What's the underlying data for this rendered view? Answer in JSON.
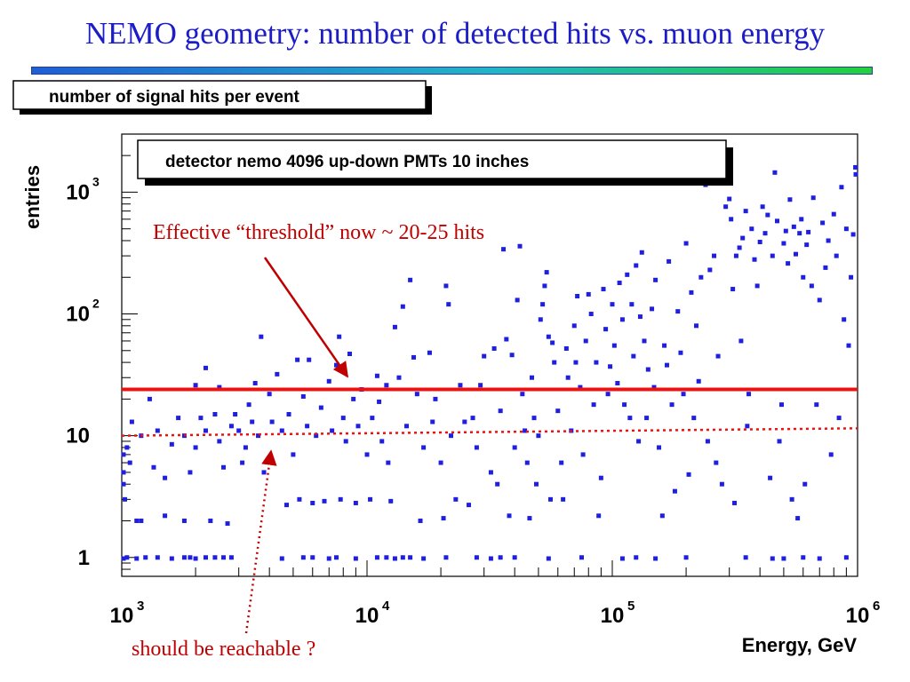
{
  "slide": {
    "title": "NEMO geometry: number of detected hits vs. muon energy"
  },
  "colors": {
    "title": "#1c1cc8",
    "points": "#1f1fe0",
    "threshold": "#ee1111",
    "annotation": "#c00000"
  },
  "chart_data": {
    "type": "scatter",
    "title": "number of signal hits per event",
    "subtitle": "detector nemo 4096 up-down PMTs 10 inches",
    "xlabel": "Energy, GeV",
    "ylabel": "entries",
    "x_scale": "log",
    "y_scale": "log",
    "xlim": [
      1000,
      1000000
    ],
    "ylim": [
      0.7,
      3000
    ],
    "x_ticks": [
      {
        "value": 1000,
        "base": "10",
        "exp": "3"
      },
      {
        "value": 10000,
        "base": "10",
        "exp": "4"
      },
      {
        "value": 100000,
        "base": "10",
        "exp": "5"
      },
      {
        "value": 1000000,
        "base": "10",
        "exp": "6"
      }
    ],
    "y_ticks": [
      {
        "value": 1,
        "base": "1",
        "exp": ""
      },
      {
        "value": 10,
        "base": "10",
        "exp": ""
      },
      {
        "value": 100,
        "base": "10",
        "exp": "2"
      },
      {
        "value": 1000,
        "base": "10",
        "exp": "3"
      }
    ],
    "lines": [
      {
        "name": "effective-threshold",
        "style": "solid",
        "y_start": 24,
        "y_end": 24
      },
      {
        "name": "reachable-threshold",
        "style": "dotted",
        "y_start": 10,
        "y_end": 11.5
      }
    ],
    "annotations": [
      {
        "text": "Effective “threshold” now ~ 20-25 hits",
        "arrow_to": [
          8000,
          30
        ]
      },
      {
        "text": "should be reachable ?",
        "arrow_to": [
          3700,
          9
        ]
      }
    ],
    "points": [
      [
        1000,
        0.98
      ],
      [
        1050,
        1.0
      ],
      [
        1150,
        0.98
      ],
      [
        1150,
        2.0
      ],
      [
        1250,
        1.0
      ],
      [
        1400,
        1.0
      ],
      [
        1600,
        0.98
      ],
      [
        1800,
        1.0
      ],
      [
        1900,
        1.0
      ],
      [
        2000,
        0.98
      ],
      [
        2200,
        1.0
      ],
      [
        2400,
        1.0
      ],
      [
        2600,
        1.0
      ],
      [
        2800,
        1.0
      ],
      [
        4500,
        0.98
      ],
      [
        5500,
        1.0
      ],
      [
        6000,
        1.0
      ],
      [
        7000,
        0.98
      ],
      [
        7500,
        1.0
      ],
      [
        9000,
        0.98
      ],
      [
        11000,
        1.0
      ],
      [
        12000,
        1.0
      ],
      [
        13000,
        0.98
      ],
      [
        14000,
        1.0
      ],
      [
        15000,
        1.0
      ],
      [
        17000,
        0.98
      ],
      [
        21000,
        1.0
      ],
      [
        28000,
        1.0
      ],
      [
        32000,
        0.98
      ],
      [
        35000,
        1.0
      ],
      [
        40000,
        1.0
      ],
      [
        55000,
        0.98
      ],
      [
        75000,
        1.0
      ],
      [
        110000,
        0.98
      ],
      [
        125000,
        1.0
      ],
      [
        150000,
        0.98
      ],
      [
        200000,
        1.0
      ],
      [
        350000,
        1.0
      ],
      [
        450000,
        0.98
      ],
      [
        500000,
        0.98
      ],
      [
        600000,
        1.0
      ],
      [
        700000,
        0.98
      ],
      [
        900000,
        1.0
      ],
      [
        1000,
        7.0
      ],
      [
        1000,
        5.0
      ],
      [
        1000,
        4.0
      ],
      [
        1030,
        3.0
      ],
      [
        1050,
        8.0
      ],
      [
        1080,
        6.0
      ],
      [
        1100,
        13.0
      ],
      [
        1200,
        2.0
      ],
      [
        1200,
        10.0
      ],
      [
        1300,
        20.0
      ],
      [
        1350,
        5.5
      ],
      [
        1400,
        11.0
      ],
      [
        1500,
        2.2
      ],
      [
        1500,
        4.5
      ],
      [
        1600,
        8.5
      ],
      [
        1700,
        14.0
      ],
      [
        1800,
        2.0
      ],
      [
        1800,
        10.0
      ],
      [
        1900,
        5.0
      ],
      [
        2000,
        26.0
      ],
      [
        2000,
        8.0
      ],
      [
        2100,
        14.0
      ],
      [
        2200,
        36.0
      ],
      [
        2200,
        11.0
      ],
      [
        2300,
        2.0
      ],
      [
        2400,
        15.0
      ],
      [
        2500,
        25.0
      ],
      [
        2500,
        9.0
      ],
      [
        2600,
        5.5
      ],
      [
        2700,
        1.9
      ],
      [
        2800,
        12.0
      ],
      [
        2900,
        15.0
      ],
      [
        3000,
        11.0
      ],
      [
        3100,
        6.0
      ],
      [
        3200,
        8.0
      ],
      [
        3300,
        18.0
      ],
      [
        3400,
        13.0
      ],
      [
        3500,
        27.0
      ],
      [
        3600,
        10.0
      ],
      [
        3700,
        65.0
      ],
      [
        3800,
        5.0
      ],
      [
        4000,
        22.0
      ],
      [
        4100,
        13.0
      ],
      [
        4300,
        32.0
      ],
      [
        4500,
        11.0
      ],
      [
        4700,
        2.7
      ],
      [
        4800,
        15.0
      ],
      [
        5000,
        7.0
      ],
      [
        5200,
        42.0
      ],
      [
        5300,
        3.0
      ],
      [
        5500,
        21.0
      ],
      [
        5700,
        12.0
      ],
      [
        5800,
        42.0
      ],
      [
        6000,
        2.8
      ],
      [
        6200,
        10.0
      ],
      [
        6500,
        17.0
      ],
      [
        6700,
        2.9
      ],
      [
        7000,
        28.0
      ],
      [
        7200,
        11.0
      ],
      [
        7500,
        38.0
      ],
      [
        7700,
        65.0
      ],
      [
        7800,
        3.0
      ],
      [
        8000,
        14.0
      ],
      [
        8200,
        9.0
      ],
      [
        8500,
        47.0
      ],
      [
        8800,
        20.0
      ],
      [
        9000,
        2.8
      ],
      [
        9200,
        12.0
      ],
      [
        9500,
        24.0
      ],
      [
        10000,
        7.0
      ],
      [
        10300,
        3.0
      ],
      [
        10500,
        14.0
      ],
      [
        11000,
        31.0
      ],
      [
        11200,
        19.0
      ],
      [
        11500,
        9.0
      ],
      [
        12000,
        26.0
      ],
      [
        12200,
        6.0
      ],
      [
        12500,
        2.9
      ],
      [
        13000,
        78.0
      ],
      [
        13500,
        30.0
      ],
      [
        14000,
        115.0
      ],
      [
        14500,
        12.0
      ],
      [
        15000,
        190.0
      ],
      [
        15500,
        44.0
      ],
      [
        16000,
        22.0
      ],
      [
        16500,
        2.0
      ],
      [
        17000,
        8.0
      ],
      [
        18000,
        48.0
      ],
      [
        18500,
        13.0
      ],
      [
        19000,
        20.0
      ],
      [
        20000,
        6.0
      ],
      [
        20500,
        2.1
      ],
      [
        21000,
        170.0
      ],
      [
        21500,
        120.0
      ],
      [
        22000,
        10.0
      ],
      [
        23000,
        3.0
      ],
      [
        24000,
        26.0
      ],
      [
        25000,
        13.0
      ],
      [
        26000,
        2.7
      ],
      [
        27000,
        14.0
      ],
      [
        28000,
        8.0
      ],
      [
        29000,
        26.0
      ],
      [
        30000,
        45.0
      ],
      [
        32000,
        5.0
      ],
      [
        33000,
        52.0
      ],
      [
        34000,
        4.0
      ],
      [
        35000,
        16.0
      ],
      [
        36000,
        340.0
      ],
      [
        37000,
        62.0
      ],
      [
        38000,
        2.2
      ],
      [
        39000,
        46.0
      ],
      [
        40000,
        8.0
      ],
      [
        41000,
        130.0
      ],
      [
        42000,
        360.0
      ],
      [
        43000,
        22.0
      ],
      [
        44000,
        11.0
      ],
      [
        45000,
        6.0
      ],
      [
        46000,
        2.1
      ],
      [
        47000,
        30.0
      ],
      [
        48000,
        14.0
      ],
      [
        49000,
        4.0
      ],
      [
        50000,
        10.0
      ],
      [
        51000,
        90.0
      ],
      [
        52000,
        120.0
      ],
      [
        53000,
        170.0
      ],
      [
        54000,
        220.0
      ],
      [
        55000,
        65.0
      ],
      [
        56000,
        3.0
      ],
      [
        57000,
        58.0
      ],
      [
        58000,
        40.0
      ],
      [
        60000,
        16.0
      ],
      [
        62000,
        6.0
      ],
      [
        63000,
        3.0
      ],
      [
        65000,
        52.0
      ],
      [
        66000,
        30.0
      ],
      [
        68000,
        11.0
      ],
      [
        70000,
        80.0
      ],
      [
        71000,
        40.0
      ],
      [
        72000,
        140.0
      ],
      [
        74000,
        25.0
      ],
      [
        76000,
        7.0
      ],
      [
        78000,
        60.0
      ],
      [
        80000,
        145.0
      ],
      [
        82000,
        100.0
      ],
      [
        84000,
        18.0
      ],
      [
        86000,
        40.0
      ],
      [
        88000,
        2.2
      ],
      [
        90000,
        4.5
      ],
      [
        92000,
        160.0
      ],
      [
        94000,
        75.0
      ],
      [
        96000,
        22.0
      ],
      [
        98000,
        37.0
      ],
      [
        100000,
        120.0
      ],
      [
        102000,
        55.0
      ],
      [
        105000,
        27.0
      ],
      [
        107000,
        180.0
      ],
      [
        110000,
        90.0
      ],
      [
        112000,
        18.0
      ],
      [
        115000,
        210.0
      ],
      [
        118000,
        14.0
      ],
      [
        120000,
        120.0
      ],
      [
        122000,
        45.0
      ],
      [
        125000,
        250.0
      ],
      [
        128000,
        9.0
      ],
      [
        130000,
        95.0
      ],
      [
        132000,
        320.0
      ],
      [
        135000,
        60.0
      ],
      [
        138000,
        14.0
      ],
      [
        140000,
        35.0
      ],
      [
        145000,
        110.0
      ],
      [
        148000,
        25.0
      ],
      [
        150000,
        190.0
      ],
      [
        155000,
        8.0
      ],
      [
        160000,
        2.2
      ],
      [
        163000,
        55.0
      ],
      [
        167000,
        38.0
      ],
      [
        170000,
        270.0
      ],
      [
        175000,
        18.0
      ],
      [
        180000,
        3.5
      ],
      [
        185000,
        105.0
      ],
      [
        190000,
        48.0
      ],
      [
        195000,
        22.0
      ],
      [
        200000,
        380.0
      ],
      [
        205000,
        4.8
      ],
      [
        210000,
        150.0
      ],
      [
        215000,
        14.0
      ],
      [
        220000,
        80.0
      ],
      [
        225000,
        28.0
      ],
      [
        230000,
        200.0
      ],
      [
        240000,
        1150.0
      ],
      [
        245000,
        9.0
      ],
      [
        250000,
        230.0
      ],
      [
        260000,
        300.0
      ],
      [
        265000,
        6.0
      ],
      [
        270000,
        45.0
      ],
      [
        280000,
        4.0
      ],
      [
        290000,
        760.0
      ],
      [
        300000,
        880.0
      ],
      [
        305000,
        600.0
      ],
      [
        310000,
        160.0
      ],
      [
        315000,
        2.8
      ],
      [
        320000,
        300.0
      ],
      [
        330000,
        350.0
      ],
      [
        335000,
        60.0
      ],
      [
        340000,
        420.0
      ],
      [
        350000,
        700.0
      ],
      [
        355000,
        12.0
      ],
      [
        360000,
        22.0
      ],
      [
        370000,
        500.0
      ],
      [
        380000,
        280.0
      ],
      [
        390000,
        170.0
      ],
      [
        400000,
        390.0
      ],
      [
        410000,
        760.0
      ],
      [
        420000,
        460.0
      ],
      [
        430000,
        650.0
      ],
      [
        440000,
        4.5
      ],
      [
        450000,
        300.0
      ],
      [
        460000,
        1450.0
      ],
      [
        470000,
        580.0
      ],
      [
        480000,
        9.0
      ],
      [
        490000,
        18.0
      ],
      [
        500000,
        380.0
      ],
      [
        510000,
        480.0
      ],
      [
        520000,
        260.0
      ],
      [
        530000,
        870.0
      ],
      [
        540000,
        3.0
      ],
      [
        550000,
        520.0
      ],
      [
        560000,
        310.0
      ],
      [
        570000,
        2.1
      ],
      [
        580000,
        460.0
      ],
      [
        590000,
        600.0
      ],
      [
        600000,
        200.0
      ],
      [
        610000,
        4.0
      ],
      [
        620000,
        370.0
      ],
      [
        630000,
        470.0
      ],
      [
        650000,
        170.0
      ],
      [
        660000,
        900.0
      ],
      [
        680000,
        18.0
      ],
      [
        700000,
        130.0
      ],
      [
        720000,
        560.0
      ],
      [
        740000,
        240.0
      ],
      [
        760000,
        400.0
      ],
      [
        780000,
        7.0
      ],
      [
        800000,
        660.0
      ],
      [
        820000,
        300.0
      ],
      [
        840000,
        14.0
      ],
      [
        860000,
        1100.0
      ],
      [
        880000,
        90.0
      ],
      [
        900000,
        500.0
      ],
      [
        920000,
        55.0
      ],
      [
        940000,
        200.0
      ],
      [
        960000,
        450.0
      ],
      [
        980000,
        1600.0
      ],
      [
        1000000,
        1400.0
      ]
    ]
  }
}
